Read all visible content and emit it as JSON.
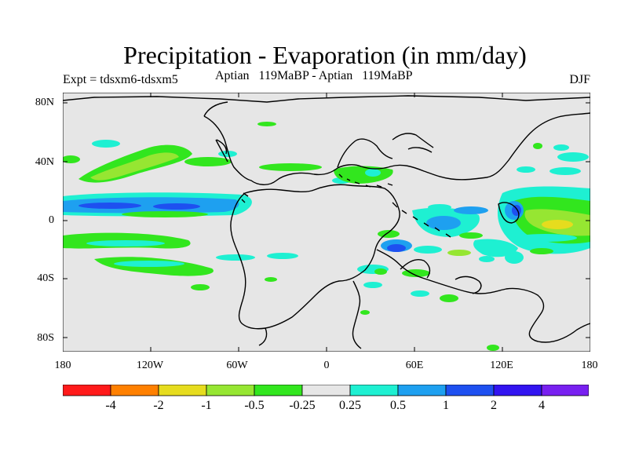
{
  "title": "Precipitation - Evaporation (in mm/day)",
  "experiment": "Expt = tdsxm6-tdsxm5",
  "subtitle": "Aptian   119MaBP - Aptian   119MaBP",
  "season": "DJF",
  "lat_labels": [
    "80N",
    "40N",
    "0",
    "40S",
    "80S"
  ],
  "lon_labels": [
    "180",
    "120W",
    "60W",
    "0",
    "60E",
    "120E",
    "180"
  ],
  "colorbar": {
    "colors": [
      "#ff1a1a",
      "#ff8000",
      "#e6dc1e",
      "#96e632",
      "#32e61e",
      "#e6e6e6",
      "#1ef0d2",
      "#1ea0f0",
      "#1e50f0",
      "#3214f0",
      "#7820f0"
    ],
    "labels": [
      "-4",
      "-2",
      "-1",
      "-0.5",
      "-0.25",
      "0.25",
      "0.5",
      "1",
      "2",
      "4"
    ]
  },
  "colors": {
    "ocean_bg": "#e6e6e6",
    "coast": "#000000"
  }
}
